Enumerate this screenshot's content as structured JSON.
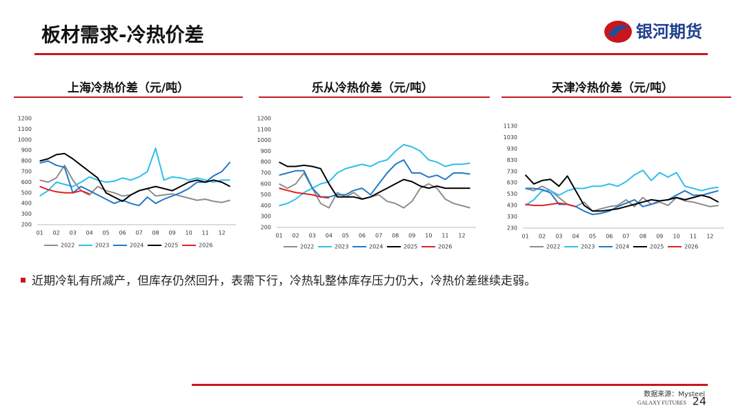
{
  "header": {
    "title": "板材需求-冷热价差",
    "logo": "银河期货"
  },
  "chart_data": [
    {
      "type": "line",
      "title": "上海冷热价差（元/吨）",
      "categories": [
        "01",
        null,
        "02",
        null,
        "03",
        null,
        "04",
        null,
        "05",
        null,
        "06",
        null,
        "07",
        null,
        "08",
        null,
        "09",
        null,
        "10",
        null,
        "11",
        null,
        "12",
        null
      ],
      "ylim": [
        200,
        1200
      ],
      "yticks": [
        200,
        300,
        400,
        500,
        600,
        700,
        800,
        900,
        1000,
        1100,
        1200
      ],
      "series": [
        {
          "name": "2022",
          "color": "#8c8c8c",
          "values": [
            620,
            600,
            640,
            760,
            620,
            520,
            480,
            560,
            520,
            500,
            470,
            480,
            520,
            540,
            470,
            480,
            490,
            470,
            450,
            430,
            440,
            420,
            410,
            430
          ]
        },
        {
          "name": "2023",
          "color": "#2ebeec",
          "values": [
            470,
            520,
            600,
            580,
            560,
            600,
            650,
            620,
            600,
            610,
            640,
            620,
            650,
            700,
            920,
            620,
            650,
            640,
            620,
            640,
            620,
            600,
            620,
            620
          ]
        },
        {
          "name": "2024",
          "color": "#1f78c8",
          "values": [
            780,
            800,
            760,
            740,
            500,
            560,
            520,
            480,
            440,
            400,
            430,
            400,
            380,
            460,
            400,
            440,
            470,
            500,
            540,
            600,
            600,
            660,
            700,
            790
          ]
        },
        {
          "name": "2025",
          "color": "#000000",
          "values": [
            800,
            820,
            860,
            870,
            820,
            760,
            700,
            640,
            500,
            460,
            420,
            480,
            520,
            540,
            560,
            540,
            520,
            560,
            600,
            620,
            600,
            620,
            600,
            560
          ]
        },
        {
          "name": "2026",
          "color": "#e02020",
          "values": [
            560,
            530,
            510,
            500,
            500,
            520,
            490,
            null,
            null,
            null,
            null,
            null,
            null,
            null,
            null,
            null,
            null,
            null,
            null,
            null,
            null,
            null,
            null,
            null
          ]
        }
      ]
    },
    {
      "type": "line",
      "title": "乐从冷热价差（元/吨）",
      "categories": [
        "01",
        null,
        "02",
        null,
        "03",
        null,
        "04",
        null,
        "05",
        null,
        "06",
        null,
        "07",
        null,
        "08",
        null,
        "09",
        null,
        "10",
        null,
        "11",
        null,
        "12",
        null
      ],
      "ylim": [
        200,
        1200
      ],
      "yticks": [
        200,
        300,
        400,
        500,
        600,
        700,
        800,
        900,
        1000,
        1100,
        1200
      ],
      "series": [
        {
          "name": "2022",
          "color": "#8c8c8c",
          "values": [
            600,
            560,
            600,
            700,
            560,
            420,
            380,
            520,
            480,
            520,
            460,
            480,
            500,
            440,
            420,
            380,
            440,
            560,
            600,
            560,
            460,
            420,
            400,
            380
          ]
        },
        {
          "name": "2023",
          "color": "#2ebeec",
          "values": [
            400,
            420,
            460,
            520,
            560,
            600,
            620,
            700,
            740,
            760,
            780,
            760,
            800,
            820,
            900,
            960,
            940,
            900,
            820,
            800,
            760,
            780,
            780,
            790
          ]
        },
        {
          "name": "2024",
          "color": "#1f78c8",
          "values": [
            680,
            700,
            720,
            720,
            560,
            480,
            480,
            500,
            500,
            540,
            560,
            500,
            600,
            700,
            780,
            820,
            700,
            700,
            660,
            680,
            640,
            700,
            700,
            690
          ]
        },
        {
          "name": "2025",
          "color": "#000000",
          "values": [
            800,
            760,
            760,
            770,
            760,
            740,
            600,
            480,
            480,
            480,
            460,
            480,
            520,
            560,
            600,
            640,
            620,
            580,
            560,
            580,
            560,
            560,
            560,
            560
          ]
        },
        {
          "name": "2026",
          "color": "#e02020",
          "values": [
            560,
            540,
            520,
            510,
            500,
            480,
            470,
            null,
            null,
            null,
            null,
            null,
            null,
            null,
            null,
            null,
            null,
            null,
            null,
            null,
            null,
            null,
            null,
            null
          ]
        }
      ]
    },
    {
      "type": "line",
      "title": "天津冷热价差（元/吨）",
      "categories": [
        "01",
        null,
        "02",
        null,
        "03",
        null,
        "04",
        null,
        "05",
        null,
        "06",
        null,
        "07",
        null,
        "08",
        null,
        "09",
        null,
        "10",
        null,
        "11",
        null,
        "12",
        null
      ],
      "ylim": [
        230,
        1130
      ],
      "yticks": [
        230,
        330,
        430,
        530,
        630,
        730,
        830,
        930,
        1030,
        1130
      ],
      "series": [
        {
          "name": "2022",
          "color": "#8c8c8c",
          "values": [
            580,
            560,
            600,
            560,
            500,
            440,
            420,
            460,
            380,
            400,
            420,
            430,
            480,
            420,
            500,
            440,
            460,
            430,
            500,
            470,
            460,
            440,
            420,
            430
          ]
        },
        {
          "name": "2023",
          "color": "#2ebeec",
          "values": [
            430,
            480,
            560,
            560,
            520,
            560,
            580,
            580,
            600,
            600,
            620,
            600,
            640,
            700,
            740,
            650,
            720,
            680,
            720,
            600,
            580,
            560,
            580,
            590
          ]
        },
        {
          "name": "2024",
          "color": "#1f78c8",
          "values": [
            580,
            580,
            570,
            540,
            440,
            440,
            420,
            380,
            350,
            360,
            380,
            420,
            450,
            480,
            420,
            440,
            470,
            480,
            520,
            560,
            520,
            520,
            540,
            560
          ]
        },
        {
          "name": "2025",
          "color": "#000000",
          "values": [
            700,
            620,
            650,
            660,
            600,
            690,
            560,
            430,
            380,
            380,
            390,
            400,
            420,
            440,
            460,
            480,
            470,
            480,
            500,
            480,
            500,
            520,
            500,
            460
          ]
        },
        {
          "name": "2026",
          "color": "#e02020",
          "values": [
            440,
            430,
            430,
            440,
            450,
            440,
            420,
            null,
            null,
            null,
            null,
            null,
            null,
            null,
            null,
            null,
            null,
            null,
            null,
            null,
            null,
            null,
            null,
            null
          ]
        }
      ]
    }
  ],
  "bullet": "近期冷轧有所减产，但库存仍然回升，表需下行，冷热轧整体库存压力仍大，冷热价差继续走弱。",
  "footer": {
    "source": "数据来源：Mysteel",
    "brand": "GALAXY FUTURES",
    "page": "24"
  }
}
